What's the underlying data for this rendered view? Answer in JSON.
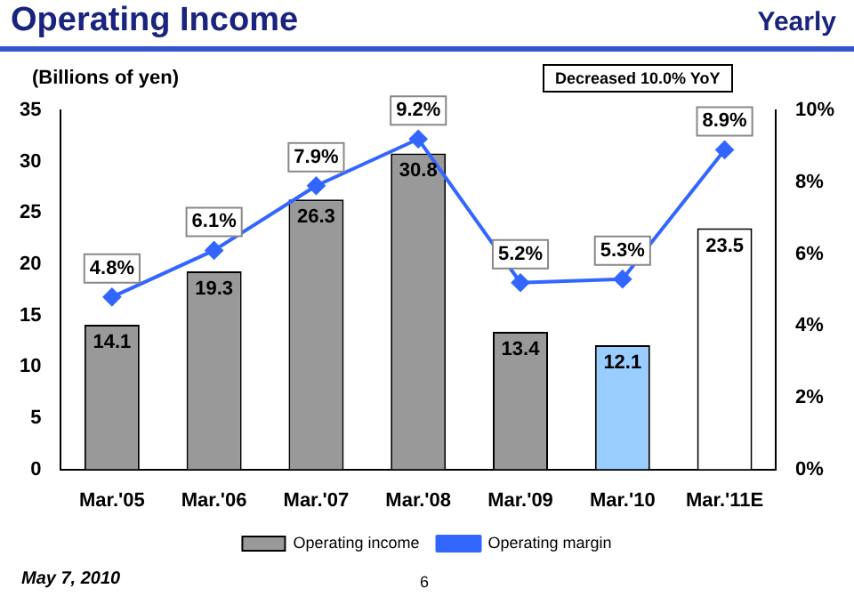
{
  "chart_data": {
    "type": "bar",
    "title": "Operating Income",
    "subtitle": "Yearly",
    "ylabel": "(Billions of yen)",
    "annotations": [
      "Decreased 10.0% YoY",
      "May 7, 2010",
      "6"
    ],
    "categories": [
      "Mar.'05",
      "Mar.'06",
      "Mar.'07",
      "Mar.'08",
      "Mar.'09",
      "Mar.'10",
      "Mar.'11E"
    ],
    "series": [
      {
        "name": "Operating income",
        "colors": [
          "#999999",
          "#999999",
          "#999999",
          "#999999",
          "#999999",
          "#99ccff",
          "#ffffff"
        ],
        "values": [
          14.1,
          19.3,
          26.3,
          30.8,
          13.4,
          12.1,
          23.5
        ],
        "value_labels": [
          "14.1",
          "19.3",
          "26.3",
          "30.8",
          "13.4",
          "12.1",
          "23.5"
        ]
      },
      {
        "name": "Operating margin",
        "type": "line",
        "axis": "y2",
        "color": "#3366ff",
        "values": [
          4.8,
          6.1,
          7.9,
          9.2,
          5.2,
          5.3,
          8.9
        ],
        "value_labels": [
          "4.8%",
          "6.1%",
          "7.9%",
          "9.2%",
          "5.2%",
          "5.3%",
          "8.9%"
        ]
      }
    ],
    "ylim": [
      0,
      35
    ],
    "yticks": [
      0,
      5,
      10,
      15,
      20,
      25,
      30,
      35
    ],
    "y2lim": [
      0,
      10
    ],
    "y2ticks": [
      {
        "value": 0,
        "label": "0%"
      },
      {
        "value": 2,
        "label": "2%"
      },
      {
        "value": 4,
        "label": "4%"
      },
      {
        "value": 6,
        "label": "6%"
      },
      {
        "value": 8,
        "label": "8%"
      },
      {
        "value": 10,
        "label": "10%"
      }
    ],
    "legend": "bottom",
    "marker": "diamond",
    "line_style": "solid"
  }
}
